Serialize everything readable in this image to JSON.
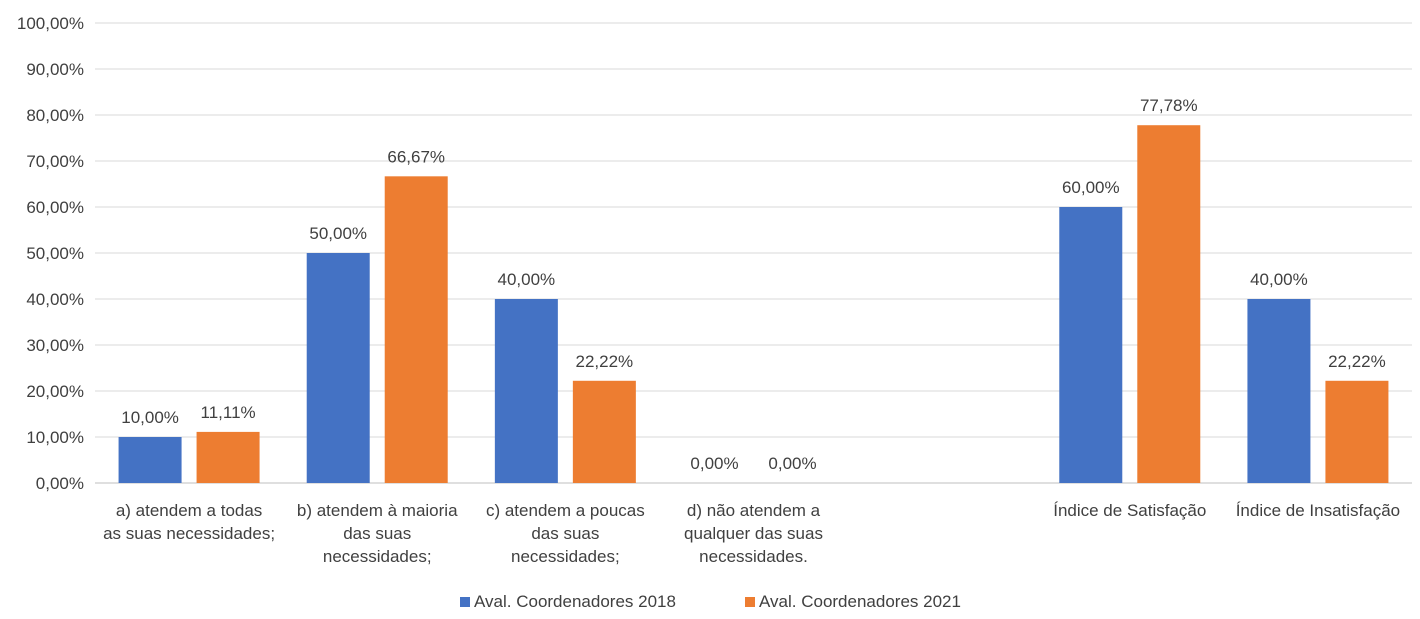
{
  "chart_data": {
    "type": "bar",
    "title": "",
    "xlabel": "",
    "ylabel": "",
    "ylim": [
      0,
      100
    ],
    "yticks": [
      "0,00%",
      "10,00%",
      "20,00%",
      "30,00%",
      "40,00%",
      "50,00%",
      "60,00%",
      "70,00%",
      "80,00%",
      "90,00%",
      "100,00%"
    ],
    "grid": true,
    "legend_position": "bottom",
    "categories": [
      [
        "a) atendem a todas",
        "as suas necessidades;"
      ],
      [
        "b) atendem à maioria",
        "das suas",
        "necessidades;"
      ],
      [
        "c) atendem a poucas",
        "das suas",
        "necessidades;"
      ],
      [
        "d) não atendem a",
        "qualquer das suas",
        "necessidades."
      ],
      [],
      [
        "Índice de Satisfação"
      ],
      [
        "Índice de Insatisfação"
      ]
    ],
    "series": [
      {
        "name": "Aval. Coordenadores 2018",
        "color": "#4472C4",
        "values": [
          10.0,
          50.0,
          40.0,
          0.0,
          null,
          60.0,
          40.0
        ],
        "labels": [
          "10,00%",
          "50,00%",
          "40,00%",
          "0,00%",
          "",
          "60,00%",
          "40,00%"
        ]
      },
      {
        "name": "Aval. Coordenadores 2021",
        "color": "#ED7D31",
        "values": [
          11.11,
          66.67,
          22.22,
          0.0,
          null,
          77.78,
          22.22
        ],
        "labels": [
          "11,11%",
          "66,67%",
          "22,22%",
          "0,00%",
          "",
          "77,78%",
          "22,22%"
        ]
      }
    ]
  }
}
